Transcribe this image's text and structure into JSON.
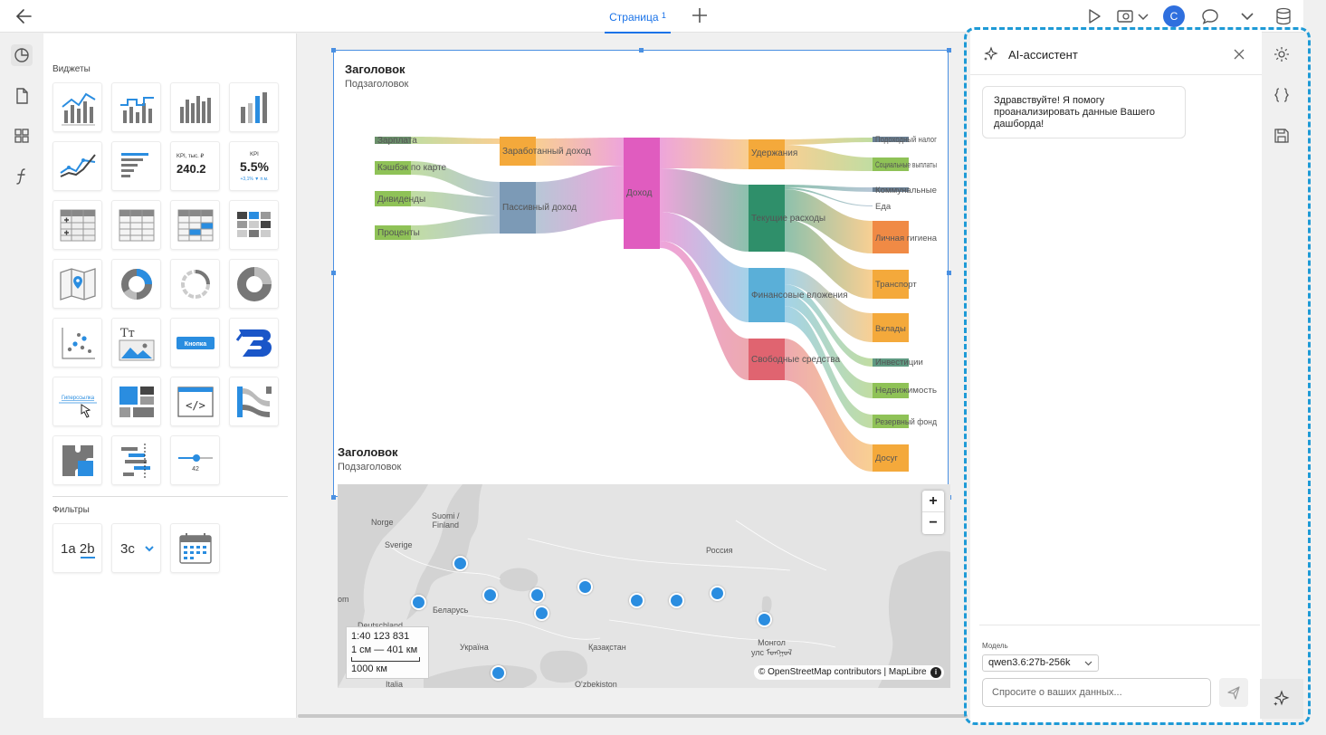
{
  "topbar": {
    "tab_label": "Страница",
    "tab_number": "1",
    "avatar_initial": "С"
  },
  "panel": {
    "widgets_title": "Виджеты",
    "filters_title": "Фильтры",
    "kpi_tile": {
      "label": "KPI, тыс. ₽",
      "value": "240.2"
    },
    "kpi_tile_pct": {
      "label": "KPI",
      "value": "5.5%",
      "delta": "+3,1% ▼ п.м."
    },
    "button_tile_label": "Кнопка",
    "link_tile_label": "Гиперссылка",
    "slider_tile_value": "42",
    "filter_tiles": [
      "1a 2b",
      "3c"
    ]
  },
  "sankey": {
    "title": "Заголовок",
    "subtitle": "Подзаголовок",
    "nodes": {
      "salary": "Зарплата",
      "cashback": "Кэшбэк по карте",
      "dividends": "Дивиденды",
      "interest": "Проценты",
      "earned": "Заработанный доход",
      "passive": "Пассивный доход",
      "income": "Доход",
      "deductions": "Удержания",
      "expenses": "Текущие расходы",
      "financial": "Финансовые вложения",
      "free": "Свободные средства",
      "tax": "Подоходный налог",
      "social": "Социальные выплаты",
      "utilities": "Коммунальные",
      "food": "Еда",
      "hygiene": "Личная гигиена",
      "transport": "Транспорт",
      "deposits": "Вклады",
      "investments": "Инвестиции",
      "realty": "Недвижимость",
      "reserve": "Резервный фонд",
      "leisure": "Досуг"
    },
    "colors": {
      "green": "#8fc257",
      "blue_gray": "#7c9ab6",
      "orange": "#f4a93b",
      "pink": "#e05cbf",
      "teal": "#2f8f6a",
      "sky": "#5aafd8",
      "red": "#e06470"
    }
  },
  "map": {
    "title": "Заголовок",
    "subtitle": "Подзаголовок",
    "labels": {
      "norge": "Norge",
      "finland": "Suomi /\nFinland",
      "sverige": "Sverige",
      "russia": "Россия",
      "belarus": "Беларусь",
      "ukraine": "Україна",
      "kazakhstan": "Қазақстан",
      "mongolia": "Монгол\nулс ᠮᠣᠩᠭᠣᠯ",
      "uzbekistan": "O'zbekiston",
      "italia": "Italia",
      "deutschland": "Deutschland",
      "left_edge": "om"
    },
    "zoom_in": "+",
    "zoom_out": "−",
    "scale_ratio": "1:40 123 831",
    "scale_cm": "1 см — 401 км",
    "scale_km": "1000 км",
    "attribution": "© OpenStreetMap contributors | MapLibre",
    "info": "i"
  },
  "assistant": {
    "title": "AI-ассистент",
    "greeting": "Здравствуйте! Я помогу проанализировать данные Вашего дашборда!",
    "model_label": "Модель",
    "model_value": "qwen3.6:27b-256k",
    "input_placeholder": "Спросите о ваших данных..."
  }
}
